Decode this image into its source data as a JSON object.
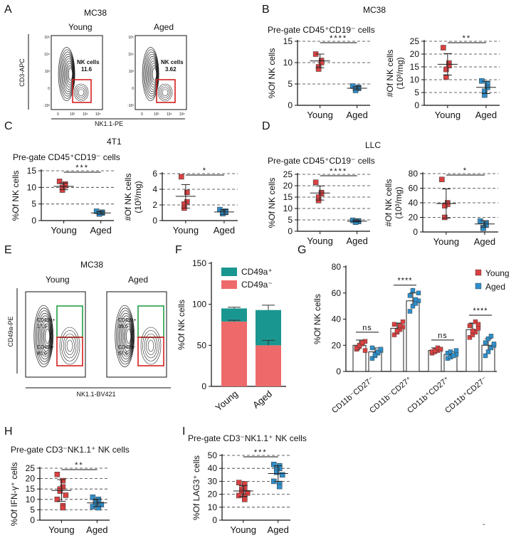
{
  "panel_letters": [
    "A",
    "B",
    "C",
    "D",
    "E",
    "F",
    "G",
    "H",
    "I"
  ],
  "colors": {
    "young": "#d94141",
    "aged": "#2f8ec9",
    "cd49a_pos": "#1a9690",
    "cd49a_neg": "#ee6a6a",
    "gate_red": "#d42020",
    "gate_green": "#22a045"
  },
  "flow_A": {
    "title": "MC38",
    "groups": [
      "Young",
      "Aged"
    ],
    "gate_label": "NK cells",
    "gate_values": [
      "11.6",
      "3.62"
    ],
    "x_axis": "NK1.1-PE",
    "y_axis": "CD3-APC",
    "x_ticks": [
      "0",
      "10³",
      "10⁴",
      "10⁵"
    ],
    "y_ticks": [
      "-10³",
      "0",
      "10³",
      "10⁴",
      "10⁵"
    ]
  },
  "flow_E": {
    "title": "MC38",
    "groups": [
      "Young",
      "Aged"
    ],
    "pos_label": "CD49a+",
    "neg_label": "CD49a-",
    "pos_values": [
      "17.3",
      "39.5"
    ],
    "neg_values": [
      "80.0",
      "57.5"
    ],
    "x_axis": "NK1.1-BV421",
    "y_axis": "CD49a-PE"
  },
  "header_B": "MC38",
  "header_C": "4T1",
  "header_D": "LLC",
  "pregate_text": "Pre-gate CD45⁺CD19⁻ cells",
  "pregate_nk_text": "Pre-gate CD3⁻NK1.1⁺ NK cells",
  "chart_data": [
    {
      "id": "B1",
      "type": "scatter",
      "ylabel": "%Of NK cells",
      "ylim": [
        0,
        15
      ],
      "yticks": [
        0,
        5,
        10,
        15
      ],
      "categories": [
        "Young",
        "Aged"
      ],
      "points": [
        [
          12,
          10.5,
          10,
          9,
          8.5
        ],
        [
          4.5,
          4.2,
          4,
          3.8,
          3.5
        ]
      ],
      "mean": [
        10.4,
        4.0
      ],
      "sd": [
        1.6,
        0.4
      ],
      "sig": "****"
    },
    {
      "id": "B2",
      "type": "scatter",
      "ylabel": "#Of NK cells",
      "ylabel2": "(10³/mg)",
      "ylim": [
        0,
        25
      ],
      "yticks": [
        0,
        5,
        10,
        15,
        20,
        25
      ],
      "categories": [
        "Young",
        "Aged"
      ],
      "points": [
        [
          22.5,
          16.5,
          15.5,
          14,
          11
        ],
        [
          9.5,
          8.5,
          7,
          5.5,
          4
        ]
      ],
      "mean": [
        16.0,
        7.0
      ],
      "sd": [
        4.2,
        2.4
      ],
      "sig": "**"
    },
    {
      "id": "C1",
      "type": "scatter",
      "ylabel": "%Of NK cells",
      "ylim": [
        0,
        15
      ],
      "yticks": [
        0,
        5,
        10,
        15
      ],
      "categories": [
        "Young",
        "Aged"
      ],
      "points": [
        [
          11.8,
          11,
          10.5,
          10,
          9.2
        ],
        [
          2.8,
          2.5,
          2.3,
          2.1,
          2.0
        ]
      ],
      "mean": [
        10.3,
        2.3
      ],
      "sd": [
        1.0,
        0.4
      ],
      "sig": "***"
    },
    {
      "id": "C2",
      "type": "scatter",
      "ylabel": "#Of NK cells",
      "ylabel2": "(10³/mg)",
      "ylim": [
        0,
        6
      ],
      "yticks": [
        0,
        2,
        4,
        6
      ],
      "categories": [
        "Young",
        "Aged"
      ],
      "points": [
        [
          5.6,
          3.6,
          2.4,
          2.1,
          1.6
        ],
        [
          1.4,
          1.2,
          1.05,
          0.95,
          0.9
        ]
      ],
      "mean": [
        3.1,
        1.1
      ],
      "sd": [
        1.5,
        0.3
      ],
      "sig": "*"
    },
    {
      "id": "D1",
      "type": "scatter",
      "ylabel": "%Of NK cells",
      "ylim": [
        0,
        25
      ],
      "yticks": [
        0,
        5,
        10,
        15,
        20,
        25
      ],
      "categories": [
        "Young",
        "Aged"
      ],
      "points": [
        [
          21.5,
          17,
          16.5,
          15,
          13.5
        ],
        [
          4.8,
          4.5,
          4.3,
          4.2,
          4.0
        ]
      ],
      "mean": [
        16.8,
        4.4
      ],
      "sd": [
        3.1,
        0.3
      ],
      "sig": "****"
    },
    {
      "id": "D2",
      "type": "scatter",
      "ylabel": "#Of NK cells",
      "ylabel2": "(10³/mg)",
      "ylim": [
        0,
        80
      ],
      "yticks": [
        0,
        20,
        40,
        60,
        80
      ],
      "categories": [
        "Young",
        "Aged"
      ],
      "points": [
        [
          72,
          40,
          38,
          36,
          20
        ],
        [
          15,
          12,
          10,
          6,
          5
        ]
      ],
      "mean": [
        39,
        11
      ],
      "sd": [
        20,
        4.5
      ],
      "sig": "*"
    },
    {
      "id": "F",
      "type": "bar",
      "ylabel": "%Of NK cells",
      "ylim": [
        0,
        150
      ],
      "yticks": [
        0,
        50,
        100,
        150
      ],
      "categories": [
        "Young",
        "Aged"
      ],
      "series": [
        {
          "name": "CD49a⁻",
          "values": [
            79,
            50
          ],
          "err": [
            1.5,
            6
          ]
        },
        {
          "name": "CD49a⁺",
          "values": [
            16,
            43
          ],
          "err": [
            1.5,
            6
          ]
        }
      ],
      "legend": [
        "CD49a⁺",
        "CD49a⁻"
      ]
    },
    {
      "id": "G",
      "type": "bar",
      "ylabel": "%Of NK cells",
      "ylim": [
        0,
        80
      ],
      "yticks": [
        0,
        20,
        40,
        60,
        80
      ],
      "categories": [
        "CD11b⁻CD27⁻",
        "CD11b⁻CD27⁺",
        "CD11b⁺CD27⁺",
        "CD11b⁺CD27⁻"
      ],
      "series": [
        {
          "name": "Young",
          "values": [
            20,
            33,
            16,
            32
          ],
          "sd": [
            4,
            4,
            2,
            5
          ]
        },
        {
          "name": "Aged",
          "values": [
            15,
            54,
            13,
            20
          ],
          "sd": [
            3,
            6,
            2,
            5
          ]
        }
      ],
      "points_young": [
        [
          17,
          19,
          21,
          23,
          18,
          20,
          22,
          16
        ],
        [
          28,
          30,
          32,
          34,
          36,
          31,
          35,
          38
        ],
        [
          14,
          15,
          16,
          17,
          15,
          16,
          18,
          17
        ],
        [
          26,
          28,
          30,
          33,
          35,
          31,
          38,
          36
        ]
      ],
      "points_aged": [
        [
          10,
          12,
          14,
          16,
          18,
          13,
          15,
          17
        ],
        [
          46,
          50,
          52,
          54,
          58,
          62,
          55,
          60
        ],
        [
          10,
          11,
          12,
          13,
          14,
          15,
          12,
          16
        ],
        [
          12,
          15,
          18,
          20,
          22,
          25,
          27,
          21
        ]
      ],
      "sig": [
        "ns",
        "****",
        "ns",
        "****"
      ],
      "legend": [
        "Young",
        "Aged"
      ]
    },
    {
      "id": "H",
      "type": "scatter",
      "ylabel": "%Of IFN-γ⁺ cells",
      "ylim": [
        0,
        25
      ],
      "yticks": [
        0,
        5,
        10,
        15,
        20,
        25
      ],
      "categories": [
        "Young",
        "Aged"
      ],
      "points": [
        [
          22,
          19,
          16,
          15,
          14,
          12,
          10,
          7,
          6
        ],
        [
          11,
          10,
          9,
          8.5,
          8,
          7.5,
          6.5,
          6
        ]
      ],
      "mean": [
        14.3,
        8.3
      ],
      "sd": [
        5.2,
        1.8
      ],
      "sig": "**"
    },
    {
      "id": "I",
      "type": "scatter",
      "ylabel": "%Of LAG3⁺ cells",
      "ylim": [
        0,
        50
      ],
      "yticks": [
        0,
        10,
        20,
        30,
        40,
        50
      ],
      "categories": [
        "Young",
        "Aged"
      ],
      "points": [
        [
          29,
          28,
          25,
          24,
          22,
          21,
          19,
          18,
          16
        ],
        [
          43,
          42,
          40,
          39,
          37,
          35,
          30,
          28,
          26
        ]
      ],
      "mean": [
        22.5,
        36
      ],
      "sd": [
        4.2,
        6
      ],
      "sig": "***"
    }
  ]
}
